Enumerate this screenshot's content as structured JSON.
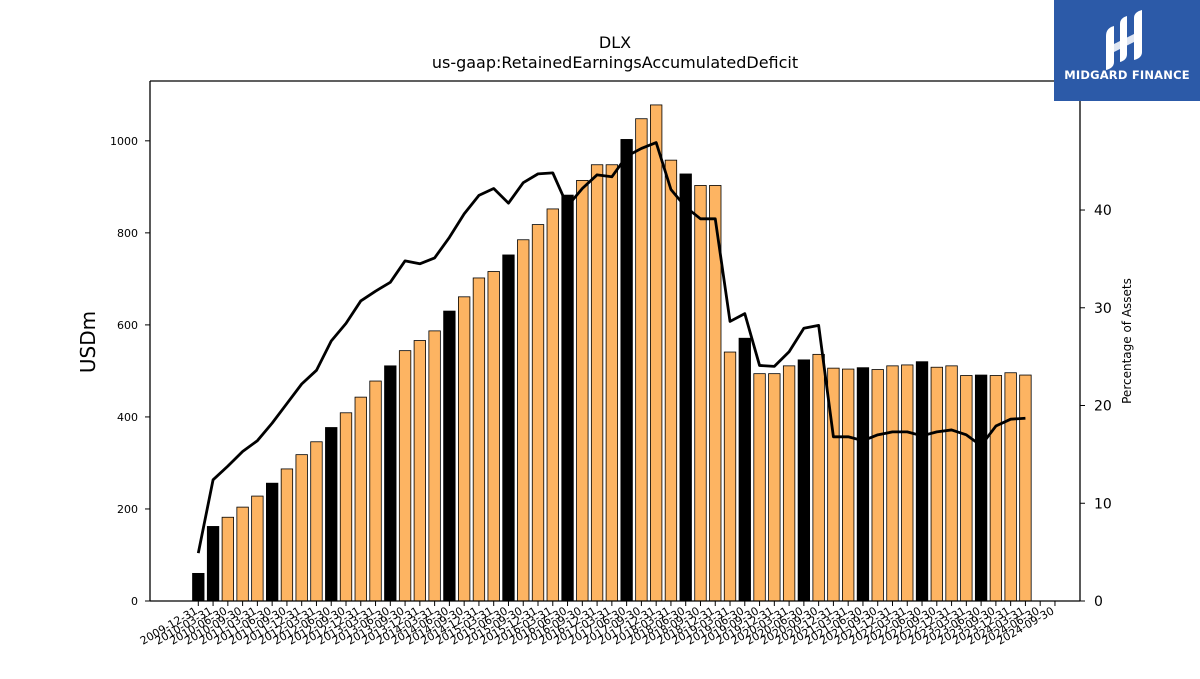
{
  "colors": {
    "bar_regular": "#fdb462",
    "bar_highlight": "#000000",
    "line": "#000000",
    "logo_bg": "#2c5aa8"
  },
  "logo": {
    "text": "MIDGARD FINANCE",
    "icon": "midgard-logo-icon"
  },
  "chart_data": {
    "type": "bar",
    "title": "DLX",
    "subtitle": "us-gaap:RetainedEarningsAccumulatedDeficit",
    "ylabel": "USDm",
    "y2label": "Percentage of Assets",
    "ylim": [
      0,
      1130
    ],
    "y2lim": [
      0,
      53.2
    ],
    "yticks": [
      0,
      200,
      400,
      600,
      800,
      1000
    ],
    "y2ticks": [
      0,
      10,
      20,
      30,
      40
    ],
    "grid": false,
    "x_tick_labels": [
      "2009-12-31",
      "2010-03-31",
      "2010-06-30",
      "2010-09-30",
      "2011-03-31",
      "2011-06-30",
      "2011-09-30",
      "2011-12-31",
      "2012-03-31",
      "2012-06-30",
      "2012-09-30",
      "2012-12-31",
      "2013-03-31",
      "2013-06-30",
      "2013-09-30",
      "2013-12-31",
      "2014-03-31",
      "2014-06-30",
      "2014-09-30",
      "2014-12-31",
      "2015-03-31",
      "2015-06-30",
      "2015-09-30",
      "2015-12-31",
      "2016-03-31",
      "2016-06-30",
      "2016-09-30",
      "2016-12-31",
      "2017-03-31",
      "2017-06-30",
      "2017-09-30",
      "2017-12-31",
      "2018-03-31",
      "2018-06-30",
      "2018-09-30",
      "2018-12-31",
      "2019-03-31",
      "2019-06-30",
      "2019-09-30",
      "2019-12-31",
      "2020-03-31",
      "2020-06-30",
      "2020-09-30",
      "2020-12-31",
      "2021-03-31",
      "2021-06-30",
      "2021-09-30",
      "2021-12-31",
      "2022-03-31",
      "2022-06-30",
      "2022-09-30",
      "2022-12-31",
      "2023-03-31",
      "2023-06-30",
      "2023-09-30",
      "2023-12-31",
      "2024-03-31",
      "2024-06-30",
      "2024-09-30"
    ],
    "values": [
      60,
      162,
      182,
      204,
      228,
      256,
      287,
      318,
      346,
      377,
      409,
      443,
      478,
      511,
      544,
      566,
      587,
      630,
      661,
      702,
      716,
      752,
      785,
      818,
      852,
      882,
      914,
      948,
      948,
      1003,
      1048,
      1078,
      958,
      928,
      903,
      903,
      541,
      571,
      494,
      494,
      511,
      524,
      536,
      506,
      504,
      507,
      503,
      511,
      513,
      520,
      508,
      511,
      490,
      491,
      490,
      496,
      491,
      null,
      null
    ],
    "highlight": [
      true,
      true,
      false,
      false,
      false,
      true,
      false,
      false,
      false,
      true,
      false,
      false,
      false,
      true,
      false,
      false,
      false,
      true,
      false,
      false,
      false,
      true,
      false,
      false,
      false,
      true,
      false,
      false,
      false,
      true,
      false,
      false,
      false,
      true,
      false,
      false,
      false,
      true,
      false,
      false,
      false,
      true,
      false,
      false,
      false,
      true,
      false,
      false,
      false,
      true,
      false,
      false,
      false,
      true,
      false,
      false,
      false,
      false,
      false
    ],
    "line_series": [
      4.9,
      12.4,
      13.8,
      15.3,
      16.4,
      18.2,
      20.2,
      22.2,
      23.6,
      26.6,
      28.4,
      30.7,
      31.7,
      32.6,
      34.8,
      34.5,
      35.1,
      37.2,
      39.6,
      41.5,
      42.2,
      40.7,
      42.8,
      43.7,
      43.8,
      40.4,
      42.2,
      43.6,
      43.4,
      45.5,
      46.3,
      46.9,
      42.1,
      40.3,
      39.1,
      39.1,
      28.6,
      29.4,
      24.1,
      24.0,
      25.5,
      27.9,
      28.2,
      16.8,
      16.8,
      16.4,
      17.0,
      17.3,
      17.3,
      16.9,
      17.3,
      17.5,
      17.0,
      15.9,
      17.9,
      18.6,
      18.7,
      null,
      null
    ]
  }
}
